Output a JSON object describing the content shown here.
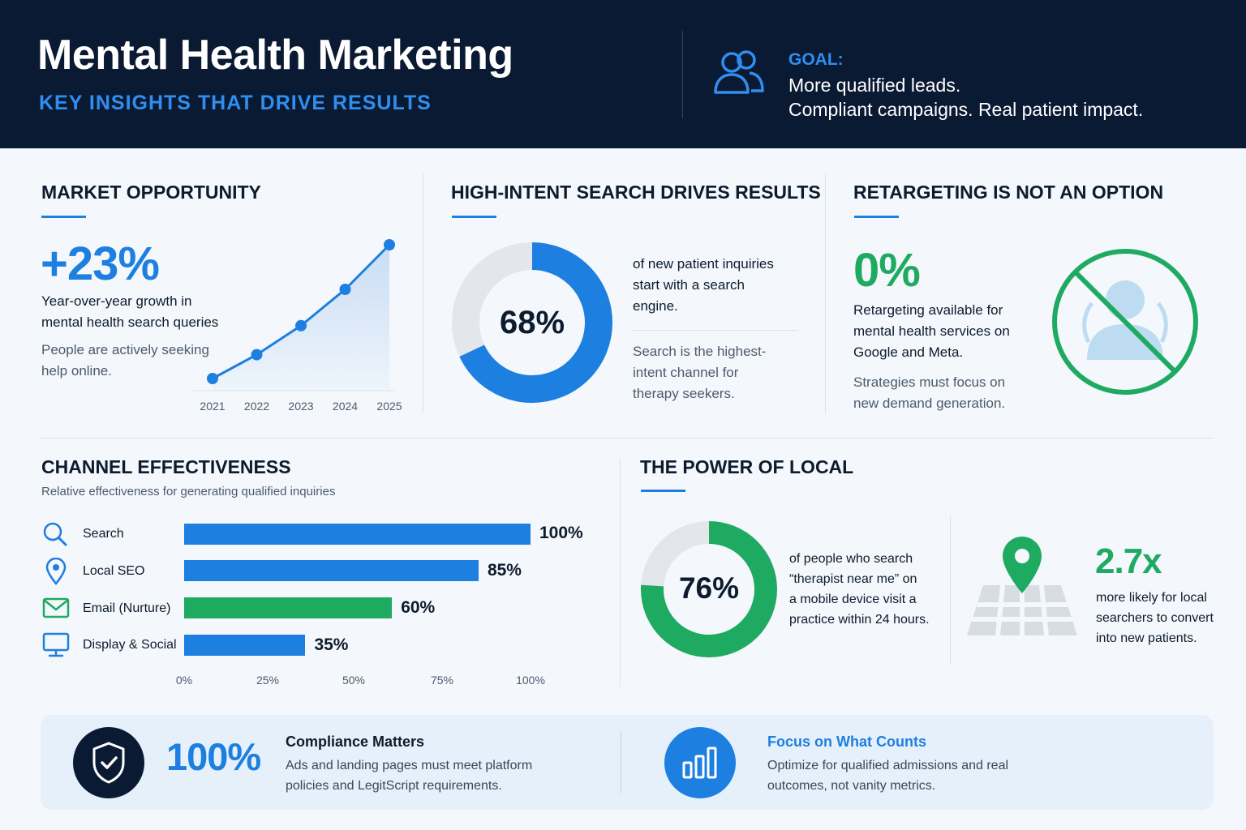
{
  "header": {
    "title": "Mental Health Marketing",
    "subtitle": "KEY INSIGHTS THAT DRIVE RESULTS",
    "goal_label": "GOAL:",
    "goal_line1": "More qualified leads.",
    "goal_line2": "Compliant campaigns. Real patient impact.",
    "icon": "users-icon"
  },
  "market": {
    "title": "MARKET OPPORTUNITY",
    "stat": "+23%",
    "desc_line1": "Year-over-year growth in",
    "desc_line2": "mental health search queries",
    "note_line1": "People are actively seeking",
    "note_line2": "help online."
  },
  "search": {
    "title": "HIGH-INTENT SEARCH DRIVES RESULTS",
    "stat": "68%",
    "desc_line1": "of new patient inquiries",
    "desc_line2": "start with a search",
    "desc_line3": "engine.",
    "note_line1": "Search is the highest-",
    "note_line2": "intent channel for",
    "note_line3": "therapy seekers."
  },
  "retarget": {
    "title": "RETARGETING IS NOT AN OPTION",
    "stat": "0%",
    "desc_line1": "Retargeting available for",
    "desc_line2": "mental health services on",
    "desc_line3": "Google and Meta.",
    "note_line1": "Strategies must focus on",
    "note_line2": "new demand generation.",
    "icon": "no-retargeting-icon"
  },
  "channel": {
    "title": "CHANNEL EFFECTIVENESS",
    "subtitle": "Relative effectiveness for generating qualified inquiries",
    "items": [
      {
        "label": "Search",
        "value_label": "100%",
        "icon": "search-icon"
      },
      {
        "label": "Local SEO",
        "value_label": "85%",
        "icon": "location-pin-icon"
      },
      {
        "label": "Email (Nurture)",
        "value_label": "60%",
        "icon": "mail-icon"
      },
      {
        "label": "Display & Social",
        "value_label": "35%",
        "icon": "monitor-icon"
      }
    ],
    "axis": [
      "0%",
      "25%",
      "50%",
      "75%",
      "100%"
    ]
  },
  "local": {
    "title": "THE POWER OF LOCAL",
    "stat": "76%",
    "desc_line1": "of people who search",
    "desc_line2": "“therapist near me” on",
    "desc_line3": "a mobile device visit a",
    "desc_line4": "practice within 24 hours.",
    "stat2": "2.7x",
    "desc2_line1": "more likely for local",
    "desc2_line2": "searchers to convert",
    "desc2_line3": "into new patients.",
    "icon": "map-pin-icon"
  },
  "bottom": {
    "stat": "100%",
    "compliance_title": "Compliance Matters",
    "compliance_line1": "Ads and landing pages must meet platform",
    "compliance_line2": "policies and LegitScript requirements.",
    "focus_title": "Focus on What Counts",
    "focus_line1": "Optimize for qualified admissions and real",
    "focus_line2": "outcomes, not vanity metrics.",
    "icons": [
      "shield-check-icon",
      "bar-chart-icon"
    ]
  },
  "colors": {
    "navy": "#0b1a33",
    "blue": "#1d7fe0",
    "green": "#1faa62",
    "gray_track": "#e3e6ea"
  },
  "chart_data": [
    {
      "type": "line",
      "x": [
        "2021",
        "2022",
        "2023",
        "2024",
        "2025"
      ],
      "series": [
        {
          "values": [
            1.0,
            1.23,
            1.51,
            1.86,
            2.29
          ]
        }
      ],
      "title": "",
      "xlabel": "",
      "ylabel": ""
    },
    {
      "type": "pie",
      "categories": [
        "search",
        "other"
      ],
      "values": [
        68,
        32
      ],
      "title": ""
    },
    {
      "type": "bar",
      "categories": [
        "Search",
        "Local SEO",
        "Email (Nurture)",
        "Display & Social"
      ],
      "values": [
        100,
        85,
        60,
        35
      ],
      "title": "CHANNEL EFFECTIVENESS",
      "xlabel": "",
      "ylabel": "",
      "xlim": [
        0,
        100
      ],
      "orientation": "horizontal"
    },
    {
      "type": "pie",
      "categories": [
        "visit",
        "other"
      ],
      "values": [
        76,
        24
      ],
      "title": ""
    }
  ]
}
